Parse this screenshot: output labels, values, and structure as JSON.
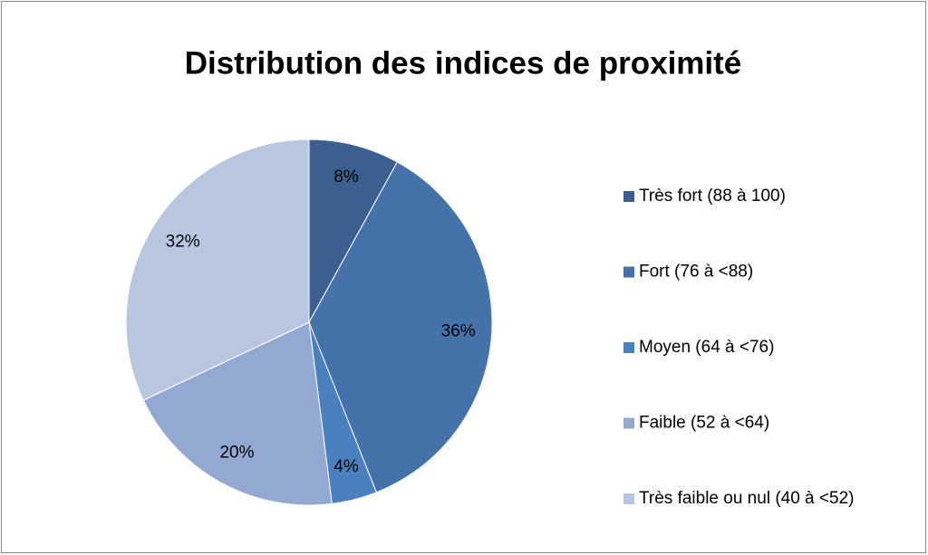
{
  "chart_data": {
    "type": "pie",
    "title": "Distribution des indices de proximité",
    "categories": [
      "Très fort (88 à 100)",
      "Fort (76 à <88)",
      "Moyen (64 à <76)",
      "Faible (52 à <64)",
      "Très faible ou nul (40 à <52)"
    ],
    "values": [
      8,
      36,
      4,
      20,
      32
    ],
    "value_labels": [
      "8%",
      "36%",
      "4%",
      "20%",
      "32%"
    ],
    "colors": [
      "#3b5f8e",
      "#4572a9",
      "#4a7fc0",
      "#94a9d2",
      "#b9c6e0"
    ],
    "legend": "right"
  }
}
